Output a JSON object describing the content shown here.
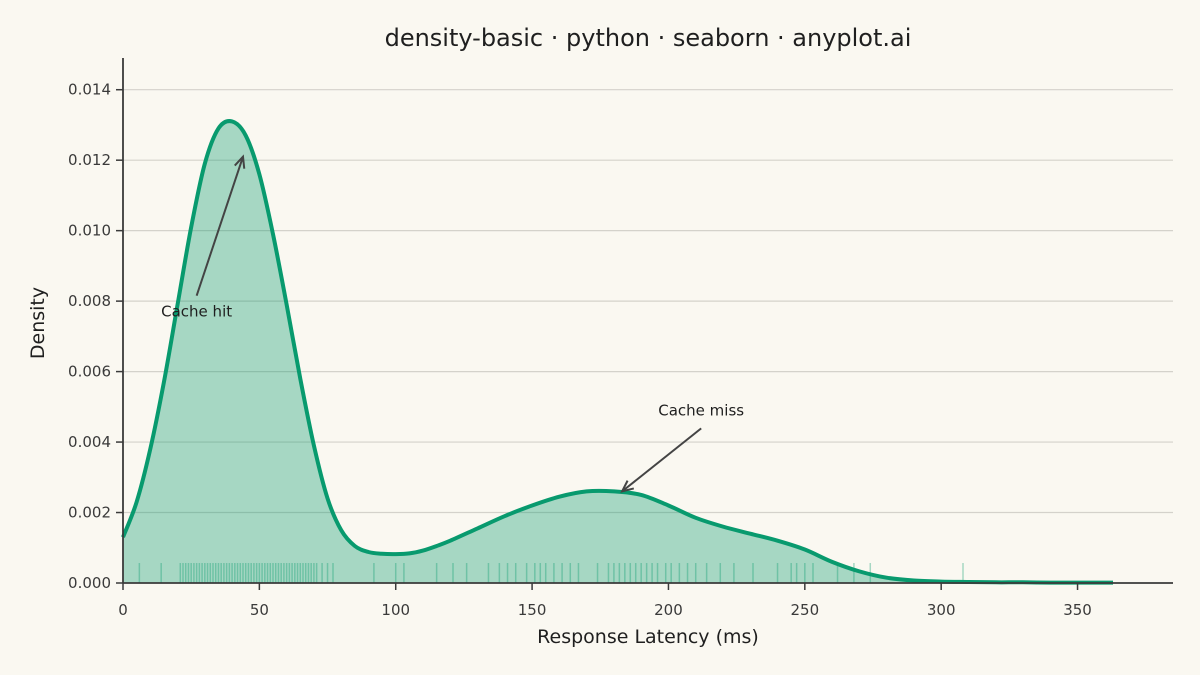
{
  "chart_data": {
    "type": "area",
    "title": "density-basic · python · seaborn · anyplot.ai",
    "xlabel": "Response Latency (ms)",
    "ylabel": "Density",
    "xlim": [
      0,
      385
    ],
    "ylim": [
      0,
      0.0149
    ],
    "x_ticks": [
      0,
      50,
      100,
      150,
      200,
      250,
      300,
      350
    ],
    "x_tick_labels": [
      "0",
      "50",
      "100",
      "150",
      "200",
      "250",
      "300",
      "350"
    ],
    "y_ticks": [
      0.0,
      0.002,
      0.004,
      0.006,
      0.008,
      0.01,
      0.012,
      0.014
    ],
    "y_tick_labels": [
      "0.000",
      "0.002",
      "0.004",
      "0.006",
      "0.008",
      "0.010",
      "0.012",
      "0.014"
    ],
    "grid": "y-major",
    "color": "#089A6E",
    "series": [
      {
        "x": [
          0,
          5,
          10,
          15,
          20,
          25,
          30,
          35,
          40,
          45,
          50,
          55,
          60,
          65,
          70,
          75,
          80,
          85,
          90,
          95,
          100,
          105,
          110,
          115,
          120,
          130,
          140,
          150,
          160,
          170,
          180,
          190,
          200,
          210,
          220,
          230,
          240,
          250,
          260,
          270,
          280,
          290,
          300,
          310,
          320,
          330,
          340,
          350,
          363
        ],
        "y": [
          0.0013,
          0.0023,
          0.0038,
          0.0057,
          0.0079,
          0.0101,
          0.0119,
          0.0129,
          0.0131,
          0.0127,
          0.0116,
          0.0099,
          0.0079,
          0.0058,
          0.0039,
          0.0024,
          0.0015,
          0.00105,
          0.00088,
          0.00083,
          0.00082,
          0.00084,
          0.00092,
          0.00105,
          0.0012,
          0.00155,
          0.0019,
          0.0022,
          0.00245,
          0.0026,
          0.0026,
          0.0025,
          0.0022,
          0.00185,
          0.0016,
          0.0014,
          0.0012,
          0.00095,
          0.0006,
          0.00033,
          0.00015,
          7e-05,
          4e-05,
          3e-05,
          2e-05,
          2e-05,
          1e-05,
          1e-05,
          1e-05
        ]
      }
    ],
    "rug": [
      6,
      14,
      21,
      22,
      23,
      24,
      25,
      26,
      27,
      28,
      29,
      30,
      31,
      32,
      33,
      34,
      35,
      36,
      37,
      38,
      39,
      40,
      41,
      42,
      43,
      44,
      45,
      46,
      47,
      48,
      49,
      50,
      51,
      52,
      53,
      54,
      55,
      56,
      57,
      58,
      59,
      60,
      61,
      62,
      63,
      64,
      65,
      66,
      67,
      68,
      69,
      70,
      71,
      73,
      75,
      77,
      92,
      100,
      103,
      115,
      121,
      126,
      134,
      138,
      141,
      144,
      148,
      151,
      153,
      155,
      158,
      161,
      164,
      167,
      174,
      178,
      180,
      182,
      184,
      186,
      188,
      190,
      192,
      194,
      196,
      199,
      201,
      204,
      207,
      210,
      214,
      219,
      224,
      231,
      240,
      245,
      247,
      250,
      253,
      262,
      268,
      274,
      308
    ],
    "annotations": [
      {
        "text": "Cache hit",
        "point": [
          44,
          0.0121
        ],
        "text_pos": [
          27,
          0.0077
        ]
      },
      {
        "text": "Cache miss",
        "point": [
          183,
          0.0026
        ],
        "text_pos": [
          212,
          0.0049
        ]
      }
    ]
  }
}
